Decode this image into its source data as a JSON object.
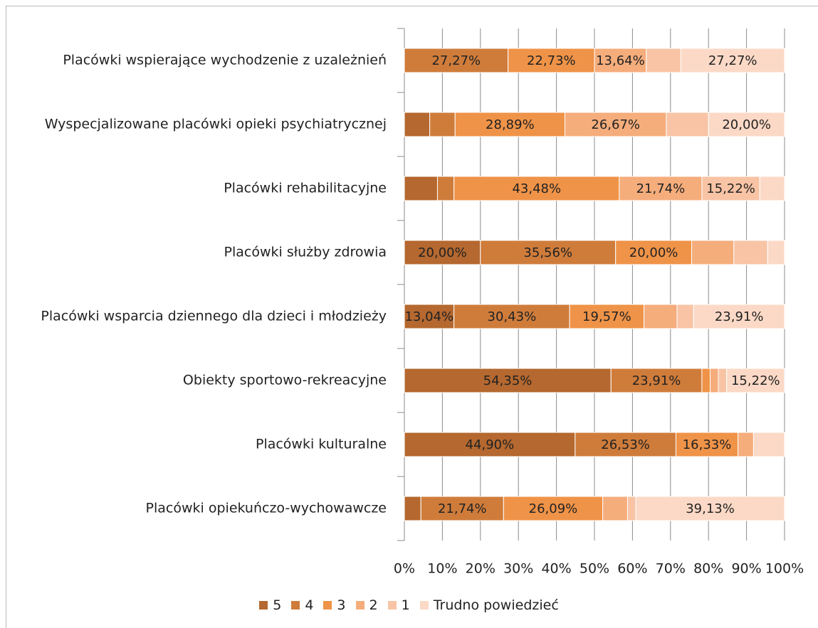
{
  "chart_data": {
    "type": "stacked_bar_horizontal",
    "categories": [
      "Placówki wspierające wychodzenie z uzależnień",
      "Wyspecjalizowane placówki opieki psychiatrycznej",
      "Placówki rehabilitacyjne",
      "Placówki służby zdrowia",
      "Placówki wsparcia dziennego dla dzieci i młodzieży",
      "Obiekty sportowo-rekreacyjne",
      "Placówki kulturalne",
      "Placówki opiekuńczo-wychowawcze"
    ],
    "series": [
      {
        "name": "5",
        "color": "#b5682f",
        "values": [
          0,
          6.67,
          8.7,
          20.0,
          13.04,
          54.35,
          44.9,
          4.35
        ],
        "value_labels": [
          null,
          null,
          null,
          "20,00%",
          "13,04%",
          "54,35%",
          "44,90%",
          null
        ]
      },
      {
        "name": "4",
        "color": "#cf7c3b",
        "values": [
          27.27,
          6.67,
          4.35,
          35.56,
          30.43,
          23.91,
          26.53,
          21.74
        ],
        "value_labels": [
          "27,27%",
          null,
          null,
          "35,56%",
          "30,43%",
          "23,91%",
          "26,53%",
          "21,74%"
        ]
      },
      {
        "name": "3",
        "color": "#ef9348",
        "values": [
          22.73,
          28.89,
          43.48,
          20.0,
          19.57,
          2.17,
          16.33,
          26.09
        ],
        "value_labels": [
          "22,73%",
          "28,89%",
          "43,48%",
          "20,00%",
          "19,57%",
          null,
          "16,33%",
          "26,09%"
        ]
      },
      {
        "name": "2",
        "color": "#f5ad7c",
        "values": [
          13.64,
          26.67,
          21.74,
          11.11,
          8.7,
          2.17,
          4.08,
          6.52
        ],
        "value_labels": [
          "13,64%",
          "26,67%",
          "21,74%",
          null,
          null,
          null,
          null,
          null
        ]
      },
      {
        "name": "1",
        "color": "#f8c4a5",
        "values": [
          9.09,
          11.11,
          15.22,
          8.89,
          4.35,
          2.17,
          0,
          2.17
        ],
        "value_labels": [
          null,
          null,
          "15,22%",
          null,
          null,
          null,
          null,
          null
        ]
      },
      {
        "name": "Trudno powiedzieć",
        "color": "#fbd9c6",
        "values": [
          27.27,
          20.0,
          6.52,
          4.44,
          23.91,
          15.22,
          8.16,
          39.13
        ],
        "value_labels": [
          "27,27%",
          "20,00%",
          null,
          null,
          "23,91%",
          "15,22%",
          null,
          "39,13%"
        ]
      }
    ],
    "xlim": [
      0,
      100
    ],
    "xticks": [
      {
        "value": 0,
        "label": "0%"
      },
      {
        "value": 10,
        "label": "10%"
      },
      {
        "value": 20,
        "label": "20%"
      },
      {
        "value": 30,
        "label": "30%"
      },
      {
        "value": 40,
        "label": "40%"
      },
      {
        "value": 50,
        "label": "50%"
      },
      {
        "value": 60,
        "label": "60%"
      },
      {
        "value": 70,
        "label": "70%"
      },
      {
        "value": 80,
        "label": "80%"
      },
      {
        "value": 90,
        "label": "90%"
      },
      {
        "value": 100,
        "label": "100%"
      }
    ],
    "grid": true,
    "legend": "bottom"
  }
}
